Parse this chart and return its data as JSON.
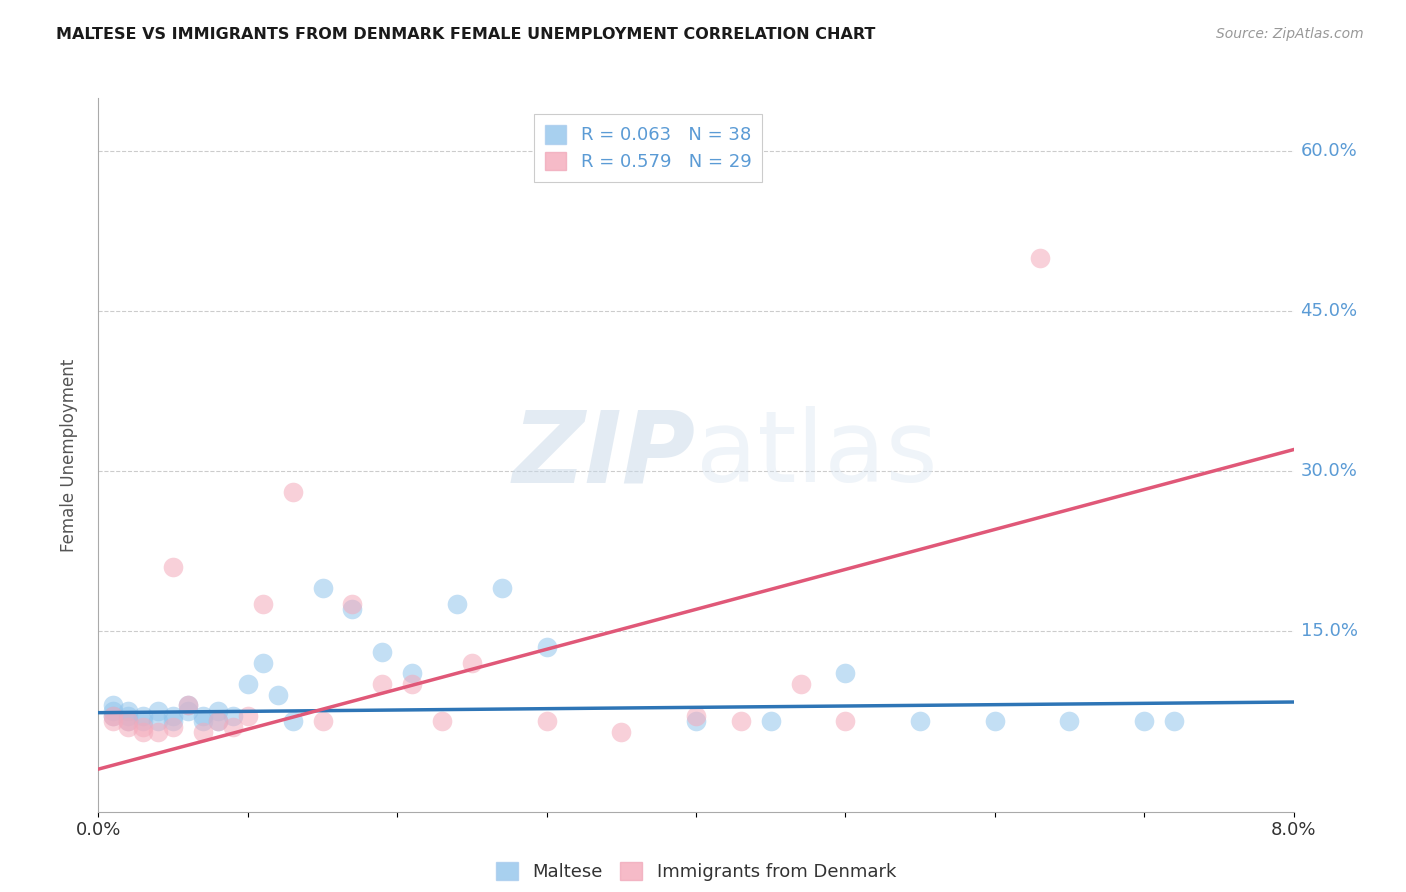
{
  "title": "MALTESE VS IMMIGRANTS FROM DENMARK FEMALE UNEMPLOYMENT CORRELATION CHART",
  "source": "Source: ZipAtlas.com",
  "ylabel": "Female Unemployment",
  "xlim": [
    0.0,
    0.08
  ],
  "ylim": [
    -0.02,
    0.65
  ],
  "ytick_positions": [
    0.15,
    0.3,
    0.45,
    0.6
  ],
  "ytick_labels": [
    "15.0%",
    "30.0%",
    "45.0%",
    "60.0%"
  ],
  "grid_color": "#cccccc",
  "background_color": "#ffffff",
  "watermark_zip": "ZIP",
  "watermark_atlas": "atlas",
  "blue_color": "#92C5EC",
  "pink_color": "#F4AABB",
  "blue_line_color": "#2E75B6",
  "pink_line_color": "#E05878",
  "tick_color": "#5B9BD5",
  "legend_R1": "R = 0.063",
  "legend_N1": "N = 38",
  "legend_R2": "R = 0.579",
  "legend_N2": "N = 29",
  "legend_label1": "Maltese",
  "legend_label2": "Immigrants from Denmark",
  "blue_scatter_x": [
    0.001,
    0.001,
    0.001,
    0.002,
    0.002,
    0.002,
    0.003,
    0.003,
    0.004,
    0.004,
    0.005,
    0.005,
    0.006,
    0.006,
    0.007,
    0.007,
    0.008,
    0.008,
    0.009,
    0.01,
    0.011,
    0.012,
    0.013,
    0.015,
    0.017,
    0.019,
    0.021,
    0.024,
    0.027,
    0.03,
    0.04,
    0.045,
    0.05,
    0.055,
    0.06,
    0.065,
    0.07,
    0.072
  ],
  "blue_scatter_y": [
    0.07,
    0.075,
    0.08,
    0.065,
    0.07,
    0.075,
    0.065,
    0.07,
    0.065,
    0.075,
    0.07,
    0.065,
    0.08,
    0.075,
    0.065,
    0.07,
    0.075,
    0.065,
    0.07,
    0.1,
    0.12,
    0.09,
    0.065,
    0.19,
    0.17,
    0.13,
    0.11,
    0.175,
    0.19,
    0.135,
    0.065,
    0.065,
    0.11,
    0.065,
    0.065,
    0.065,
    0.065,
    0.065
  ],
  "pink_scatter_x": [
    0.001,
    0.001,
    0.002,
    0.002,
    0.003,
    0.003,
    0.004,
    0.005,
    0.005,
    0.006,
    0.007,
    0.008,
    0.009,
    0.01,
    0.011,
    0.013,
    0.015,
    0.017,
    0.019,
    0.021,
    0.023,
    0.025,
    0.03,
    0.035,
    0.04,
    0.043,
    0.047,
    0.05,
    0.063
  ],
  "pink_scatter_y": [
    0.065,
    0.07,
    0.06,
    0.065,
    0.055,
    0.06,
    0.055,
    0.06,
    0.21,
    0.08,
    0.055,
    0.065,
    0.06,
    0.07,
    0.175,
    0.28,
    0.065,
    0.175,
    0.1,
    0.1,
    0.065,
    0.12,
    0.065,
    0.055,
    0.07,
    0.065,
    0.1,
    0.065,
    0.5
  ],
  "blue_trend_x": [
    0.0,
    0.08
  ],
  "blue_trend_y": [
    0.073,
    0.083
  ],
  "pink_trend_x": [
    0.0,
    0.08
  ],
  "pink_trend_y": [
    0.02,
    0.32
  ]
}
